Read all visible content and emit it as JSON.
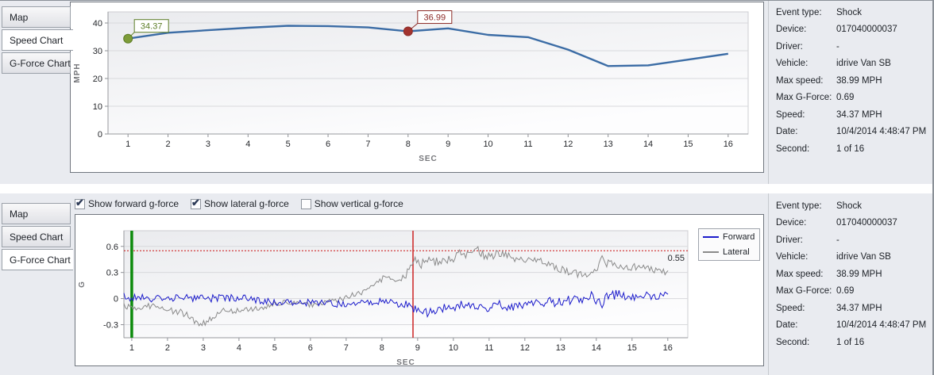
{
  "tabs": {
    "map": "Map",
    "speed": "Speed Chart",
    "gforce": "G-Force Chart"
  },
  "event_details": {
    "rows": [
      {
        "label": "Event type:",
        "value": "Shock"
      },
      {
        "label": "Device:",
        "value": "017040000037"
      },
      {
        "label": "Driver:",
        "value": "-"
      },
      {
        "label": "Vehicle:",
        "value": "idrive Van SB"
      },
      {
        "label": "Max speed:",
        "value": "38.99 MPH"
      },
      {
        "label": "Max G-Force:",
        "value": "0.69"
      },
      {
        "label": "Speed:",
        "value": "34.37 MPH"
      },
      {
        "label": "Date:",
        "value": "10/4/2014 4:48:47 PM"
      },
      {
        "label": "Second:",
        "value": "1 of 16"
      }
    ]
  },
  "gforce_controls": {
    "checkboxes": [
      {
        "label": "Show forward g-force",
        "checked": true
      },
      {
        "label": "Show lateral g-force",
        "checked": true
      },
      {
        "label": "Show vertical g-force",
        "checked": false
      }
    ]
  },
  "chart_data": [
    {
      "type": "line",
      "name": "speed-chart",
      "xlabel": "SEC",
      "ylabel": "MPH",
      "xlim": [
        0.5,
        16.5
      ],
      "ylim": [
        0,
        44
      ],
      "yticks": [
        0,
        10,
        20,
        30,
        40
      ],
      "xtick_start": 1,
      "xtick_end": 16,
      "series_color": "#3b6ca5",
      "x": [
        1,
        2,
        3,
        4,
        5,
        6,
        7,
        8,
        9,
        10,
        11,
        12,
        13,
        14,
        15,
        16
      ],
      "values": [
        34.37,
        36.5,
        37.4,
        38.3,
        38.99,
        38.9,
        38.4,
        36.99,
        38.05,
        35.7,
        34.9,
        30.4,
        24.5,
        24.75,
        26.8,
        28.9
      ],
      "markers": [
        {
          "x": 1,
          "value": 34.37,
          "label": "34.37",
          "color": "#7d9c38",
          "border": "#5c7d26"
        },
        {
          "x": 8,
          "value": 36.99,
          "label": "36.99",
          "color": "#a2332e",
          "border": "#8d2b27"
        }
      ]
    },
    {
      "type": "line",
      "name": "gforce-chart",
      "xlabel": "SEC",
      "ylabel": "G",
      "xlim": [
        0.78,
        16.56
      ],
      "ylim": [
        -0.45,
        0.78
      ],
      "yticks": [
        -0.3,
        0,
        0.3,
        0.6
      ],
      "xtick_start": 1,
      "xtick_end": 16,
      "samples": 356,
      "x_end": 16.05,
      "threshold_line": {
        "value": 0.55,
        "label": "0.55",
        "color": "#cc1111"
      },
      "vlines": [
        {
          "x": 1,
          "color": "#0b8a0b",
          "width": 3.5
        },
        {
          "x": 8.87,
          "color": "#cc2222",
          "width": 1.5
        }
      ],
      "legend": [
        {
          "name": "Forward",
          "color": "#1b1bcb"
        },
        {
          "name": "Lateral",
          "color": "#8a8a8a"
        }
      ],
      "series": [
        {
          "name": "Lateral",
          "color": "#8a8a8a",
          "envelope": [
            [
              0.78,
              -0.07
            ],
            [
              1.1,
              -0.13
            ],
            [
              1.4,
              -0.08
            ],
            [
              1.8,
              -0.1
            ],
            [
              2.2,
              -0.15
            ],
            [
              2.5,
              -0.17
            ],
            [
              2.8,
              -0.27
            ],
            [
              3.0,
              -0.28
            ],
            [
              3.3,
              -0.22
            ],
            [
              3.6,
              -0.13
            ],
            [
              3.9,
              -0.15
            ],
            [
              4.2,
              -0.12
            ],
            [
              4.6,
              -0.12
            ],
            [
              5.0,
              -0.06
            ],
            [
              5.4,
              -0.04
            ],
            [
              5.8,
              -0.07
            ],
            [
              6.2,
              -0.07
            ],
            [
              6.6,
              -0.03
            ],
            [
              6.9,
              0.0
            ],
            [
              7.2,
              0.04
            ],
            [
              7.5,
              0.08
            ],
            [
              7.8,
              0.16
            ],
            [
              8.0,
              0.22
            ],
            [
              8.2,
              0.26
            ],
            [
              8.45,
              0.18
            ],
            [
              8.7,
              0.28
            ],
            [
              8.9,
              0.48
            ],
            [
              9.1,
              0.4
            ],
            [
              9.4,
              0.43
            ],
            [
              9.7,
              0.42
            ],
            [
              10.0,
              0.47
            ],
            [
              10.2,
              0.55
            ],
            [
              10.45,
              0.48
            ],
            [
              10.7,
              0.55
            ],
            [
              10.9,
              0.48
            ],
            [
              11.1,
              0.5
            ],
            [
              11.4,
              0.52
            ],
            [
              11.7,
              0.47
            ],
            [
              12.0,
              0.44
            ],
            [
              12.3,
              0.45
            ],
            [
              12.6,
              0.4
            ],
            [
              12.9,
              0.35
            ],
            [
              13.2,
              0.31
            ],
            [
              13.5,
              0.28
            ],
            [
              13.8,
              0.3
            ],
            [
              14.0,
              0.33
            ],
            [
              14.15,
              0.5
            ],
            [
              14.3,
              0.4
            ],
            [
              14.6,
              0.38
            ],
            [
              14.9,
              0.35
            ],
            [
              15.2,
              0.37
            ],
            [
              15.5,
              0.34
            ],
            [
              15.8,
              0.32
            ],
            [
              16.05,
              0.29
            ]
          ],
          "noise_amp": [
            [
              0.78,
              0.04
            ],
            [
              3.0,
              0.04
            ],
            [
              5.0,
              0.03
            ],
            [
              7.0,
              0.03
            ],
            [
              8.5,
              0.04
            ],
            [
              9.0,
              0.055
            ],
            [
              11.0,
              0.05
            ],
            [
              12.0,
              0.045
            ],
            [
              13.0,
              0.04
            ],
            [
              14.0,
              0.05
            ],
            [
              14.5,
              0.045
            ],
            [
              16.05,
              0.035
            ]
          ]
        },
        {
          "name": "Forward",
          "color": "#1b1bcb",
          "envelope": [
            [
              0.78,
              0.02
            ],
            [
              1.5,
              0.0
            ],
            [
              2.0,
              0.01
            ],
            [
              3.0,
              0.0
            ],
            [
              4.0,
              0.01
            ],
            [
              4.6,
              -0.02
            ],
            [
              5.0,
              -0.04
            ],
            [
              6.0,
              -0.05
            ],
            [
              7.0,
              -0.06
            ],
            [
              8.0,
              -0.04
            ],
            [
              8.6,
              -0.06
            ],
            [
              9.0,
              -0.13
            ],
            [
              9.3,
              -0.17
            ],
            [
              9.6,
              -0.12
            ],
            [
              10.0,
              -0.1
            ],
            [
              10.4,
              -0.05
            ],
            [
              10.8,
              -0.12
            ],
            [
              11.2,
              -0.06
            ],
            [
              11.6,
              -0.1
            ],
            [
              12.0,
              -0.07
            ],
            [
              12.4,
              -0.03
            ],
            [
              12.8,
              -0.06
            ],
            [
              13.2,
              0.0
            ],
            [
              13.6,
              -0.02
            ],
            [
              13.8,
              0.05
            ],
            [
              14.1,
              -0.08
            ],
            [
              14.4,
              0.05
            ],
            [
              14.7,
              0.04
            ],
            [
              15.0,
              0.02
            ],
            [
              15.4,
              0.04
            ],
            [
              15.7,
              0.02
            ],
            [
              16.05,
              0.05
            ]
          ],
          "noise_amp": [
            [
              0.78,
              0.045
            ],
            [
              5.0,
              0.04
            ],
            [
              8.5,
              0.045
            ],
            [
              9.0,
              0.05
            ],
            [
              12.0,
              0.055
            ],
            [
              13.0,
              0.07
            ],
            [
              14.2,
              0.07
            ],
            [
              15.0,
              0.05
            ],
            [
              16.05,
              0.04
            ]
          ]
        }
      ]
    }
  ]
}
